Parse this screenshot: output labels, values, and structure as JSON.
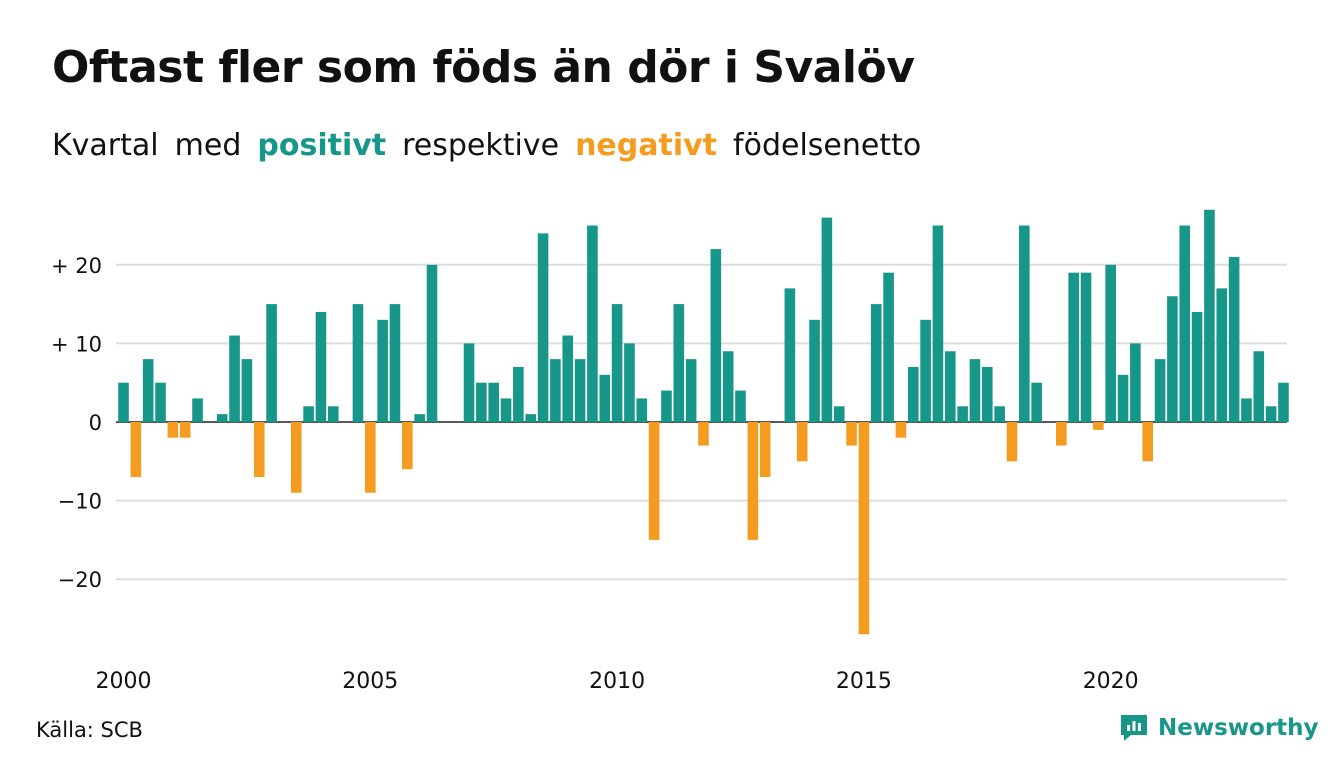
{
  "header": {
    "title": "Oftast fler som föds än dör i Svalöv",
    "subtitle": {
      "w1": "Kvartal",
      "w2": "med",
      "pos": "positivt",
      "w3": "respektive",
      "neg": "negativt",
      "w4": "födelsenetto"
    }
  },
  "footer": {
    "source": "Källa: SCB",
    "brand": "Newsworthy"
  },
  "colors": {
    "positive": "#17968a",
    "negative": "#f39c1f",
    "grid": "#dddddd"
  },
  "chart_data": {
    "type": "bar",
    "title": "Oftast fler som föds än dör i Svalöv",
    "x_start": "2000 Q1",
    "x_tick_labels": [
      "2000",
      "2005",
      "2010",
      "2015",
      "2020"
    ],
    "y_tick_labels": [
      "+ 20",
      "+ 10",
      "0",
      "−10",
      "−20"
    ],
    "y_ticks": [
      20,
      10,
      0,
      -10,
      -20
    ],
    "ylim": [
      -27,
      27
    ],
    "grid": true,
    "legend": "none",
    "values": [
      5,
      -7,
      8,
      5,
      -2,
      -2,
      3,
      0,
      1,
      11,
      8,
      -7,
      15,
      0,
      -9,
      2,
      14,
      2,
      0,
      15,
      -9,
      13,
      15,
      -6,
      1,
      20,
      0,
      0,
      10,
      5,
      5,
      3,
      7,
      1,
      24,
      8,
      11,
      8,
      25,
      6,
      15,
      10,
      3,
      -15,
      4,
      15,
      8,
      -3,
      22,
      9,
      4,
      -15,
      -7,
      0,
      17,
      -5,
      13,
      26,
      2,
      -3,
      -27,
      15,
      19,
      -2,
      7,
      13,
      25,
      9,
      2,
      8,
      7,
      2,
      -5,
      25,
      5,
      0,
      -3,
      19,
      19,
      -1,
      20,
      6,
      10,
      -5,
      8,
      16,
      25,
      14,
      27,
      17,
      21,
      3,
      9,
      2,
      5
    ]
  }
}
